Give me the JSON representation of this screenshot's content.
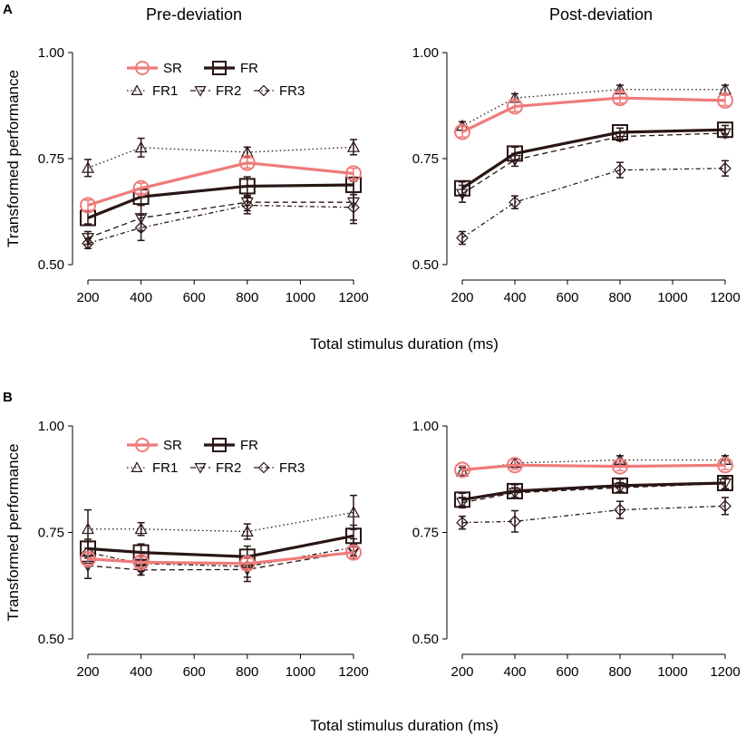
{
  "figure": {
    "panel_labels": [
      "A",
      "B"
    ],
    "titles": [
      "Pre-deviation",
      "Post-deviation"
    ],
    "xlabel": "Total stimulus duration (ms)",
    "ylabel": "Transformed performance"
  },
  "styles": {
    "SR": {
      "color": "#ef7b7b",
      "marker": "circle",
      "dash": "",
      "width": 3.2,
      "legend_row": 0
    },
    "FR": {
      "color": "#2a1515",
      "marker": "square",
      "dash": "",
      "width": 3.2,
      "legend_row": 0
    },
    "FR1": {
      "color": "#2a1515",
      "marker": "triangle-up",
      "dash": "1.5,3",
      "width": 1.3,
      "legend_row": 1
    },
    "FR2": {
      "color": "#2a1515",
      "marker": "triangle-down",
      "dash": "6,4",
      "width": 1.3,
      "legend_row": 1
    },
    "FR3": {
      "color": "#2a1515",
      "marker": "diamond",
      "dash": "5,3,1.5,3",
      "width": 1.3,
      "legend_row": 1
    }
  },
  "chart_data": [
    {
      "id": "A-pre",
      "panel": "A",
      "title": "Pre-deviation",
      "type": "line",
      "x": [
        200,
        400,
        800,
        1200
      ],
      "xlim": [
        200,
        1200
      ],
      "xticks": [
        200,
        400,
        600,
        800,
        1000,
        1200
      ],
      "ylim": [
        0.5,
        1.0
      ],
      "yticks": [
        "0.50",
        "0.75",
        "1.00"
      ],
      "ylabel": "Transformed performance",
      "legend": [
        "SR",
        "FR",
        "FR1",
        "FR2",
        "FR3"
      ],
      "series": [
        {
          "name": "SR",
          "values": [
            0.64,
            0.68,
            0.74,
            0.715
          ],
          "err": [
            0.012,
            0.012,
            0.012,
            0.012
          ]
        },
        {
          "name": "FR",
          "values": [
            0.61,
            0.66,
            0.685,
            0.688
          ],
          "err": [
            0.014,
            0.02,
            0.022,
            0.018
          ]
        },
        {
          "name": "FR1",
          "values": [
            0.728,
            0.776,
            0.765,
            0.777
          ],
          "err": [
            0.02,
            0.022,
            0.012,
            0.018
          ]
        },
        {
          "name": "FR2",
          "values": [
            0.563,
            0.61,
            0.647,
            0.647
          ],
          "err": [
            0.015,
            0.03,
            0.02,
            0.05
          ]
        },
        {
          "name": "FR3",
          "values": [
            0.55,
            0.587,
            0.64,
            0.635
          ],
          "err": [
            0.012,
            0.03,
            0.02,
            0.03
          ]
        }
      ]
    },
    {
      "id": "A-post",
      "panel": "A",
      "title": "Post-deviation",
      "type": "line",
      "x": [
        200,
        400,
        800,
        1200
      ],
      "xlim": [
        200,
        1200
      ],
      "xticks": [
        200,
        400,
        600,
        800,
        1000,
        1200
      ],
      "ylim": [
        0.5,
        1.0
      ],
      "yticks": [
        "0.50",
        "0.75",
        "1.00"
      ],
      "series": [
        {
          "name": "SR",
          "values": [
            0.813,
            0.873,
            0.893,
            0.887
          ],
          "err": [
            0.012,
            0.012,
            0.012,
            0.012
          ]
        },
        {
          "name": "FR",
          "values": [
            0.68,
            0.762,
            0.812,
            0.818
          ],
          "err": [
            0.015,
            0.015,
            0.01,
            0.01
          ]
        },
        {
          "name": "FR1",
          "values": [
            0.827,
            0.893,
            0.913,
            0.913
          ],
          "err": [
            0.01,
            0.01,
            0.01,
            0.01
          ]
        },
        {
          "name": "FR2",
          "values": [
            0.667,
            0.747,
            0.802,
            0.81
          ],
          "err": [
            0.02,
            0.015,
            0.01,
            0.01
          ]
        },
        {
          "name": "FR3",
          "values": [
            0.563,
            0.647,
            0.723,
            0.727
          ],
          "err": [
            0.015,
            0.015,
            0.018,
            0.018
          ]
        }
      ]
    },
    {
      "id": "B-pre",
      "panel": "B",
      "title": "",
      "type": "line",
      "x": [
        200,
        400,
        800,
        1200
      ],
      "xlim": [
        200,
        1200
      ],
      "xticks": [
        200,
        400,
        600,
        800,
        1000,
        1200
      ],
      "ylim": [
        0.5,
        1.0
      ],
      "yticks": [
        "0.50",
        "0.75",
        "1.00"
      ],
      "ylabel": "Transformed performance",
      "legend": [
        "SR",
        "FR",
        "FR1",
        "FR2",
        "FR3"
      ],
      "series": [
        {
          "name": "SR",
          "values": [
            0.688,
            0.68,
            0.677,
            0.703
          ],
          "err": [
            0.014,
            0.012,
            0.012,
            0.012
          ]
        },
        {
          "name": "FR",
          "values": [
            0.712,
            0.703,
            0.693,
            0.742
          ],
          "err": [
            0.022,
            0.02,
            0.025,
            0.025
          ]
        },
        {
          "name": "FR1",
          "values": [
            0.758,
            0.758,
            0.752,
            0.797
          ],
          "err": [
            0.045,
            0.015,
            0.018,
            0.04
          ]
        },
        {
          "name": "FR2",
          "values": [
            0.672,
            0.662,
            0.663,
            0.705
          ],
          "err": [
            0.03,
            0.012,
            0.028,
            0.018
          ]
        },
        {
          "name": "FR3",
          "values": [
            0.703,
            0.677,
            0.67,
            0.715
          ],
          "err": [
            0.025,
            0.018,
            0.025,
            0.02
          ]
        }
      ]
    },
    {
      "id": "B-post",
      "panel": "B",
      "title": "",
      "type": "line",
      "x": [
        200,
        400,
        800,
        1200
      ],
      "xlim": [
        200,
        1200
      ],
      "xticks": [
        200,
        400,
        600,
        800,
        1000,
        1200
      ],
      "ylim": [
        0.5,
        1.0
      ],
      "yticks": [
        "0.50",
        "0.75",
        "1.00"
      ],
      "series": [
        {
          "name": "SR",
          "values": [
            0.897,
            0.908,
            0.905,
            0.908
          ],
          "err": [
            0.01,
            0.01,
            0.01,
            0.01
          ]
        },
        {
          "name": "FR",
          "values": [
            0.827,
            0.847,
            0.86,
            0.866
          ],
          "err": [
            0.015,
            0.015,
            0.015,
            0.015
          ]
        },
        {
          "name": "FR1",
          "values": [
            0.893,
            0.913,
            0.92,
            0.92
          ],
          "err": [
            0.01,
            0.01,
            0.01,
            0.01
          ]
        },
        {
          "name": "FR2",
          "values": [
            0.82,
            0.843,
            0.855,
            0.865
          ],
          "err": [
            0.012,
            0.012,
            0.012,
            0.012
          ]
        },
        {
          "name": "FR3",
          "values": [
            0.773,
            0.776,
            0.803,
            0.812
          ],
          "err": [
            0.015,
            0.025,
            0.02,
            0.02
          ]
        }
      ]
    }
  ]
}
